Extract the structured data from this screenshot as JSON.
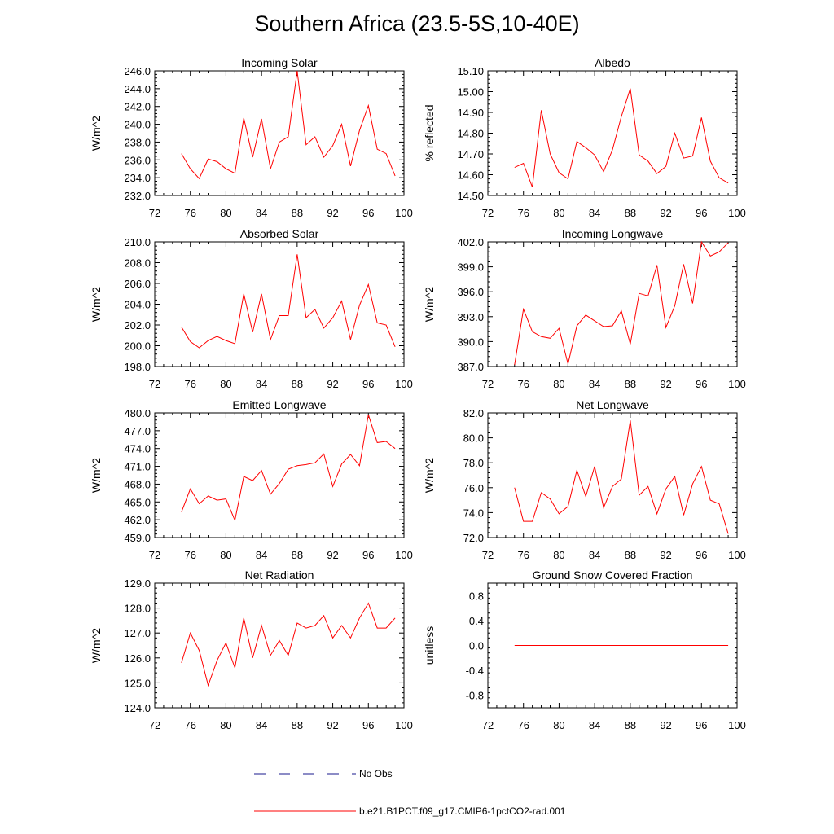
{
  "page_title": "Southern Africa (23.5-5S,10-40E)",
  "colors": {
    "model_line": "#ff0000",
    "obs_line": "#1a1a8c",
    "axis": "#000000"
  },
  "legend": {
    "obs_label": "No Obs",
    "model_label": "b.e21.B1PCT.f09_g17.CMIP6-1pctCO2-rad.001"
  },
  "chart_data": [
    {
      "type": "line",
      "title": "Incoming Solar",
      "ylabel": "W/m^2",
      "xlim": [
        72,
        100
      ],
      "ylim": [
        232,
        246
      ],
      "xticks": [
        "72",
        "76",
        "80",
        "84",
        "88",
        "92",
        "96",
        "100"
      ],
      "yticks": [
        "232.0",
        "234.0",
        "236.0",
        "238.0",
        "240.0",
        "242.0",
        "244.0",
        "246.0"
      ],
      "x": [
        75,
        76,
        77,
        78,
        79,
        80,
        81,
        82,
        83,
        84,
        85,
        86,
        87,
        88,
        89,
        90,
        91,
        92,
        93,
        94,
        95,
        96,
        97,
        98,
        99
      ],
      "series": [
        {
          "values": [
            236.7,
            235.0,
            233.9,
            236.1,
            235.8,
            235.0,
            234.5,
            240.7,
            236.3,
            240.6,
            235.0,
            238.0,
            238.6,
            246.0,
            237.7,
            238.6,
            236.3,
            237.6,
            240.0,
            235.3,
            239.3,
            242.1,
            237.2,
            236.7,
            234.2
          ]
        }
      ]
    },
    {
      "type": "line",
      "title": "Albedo",
      "ylabel": "% reflected",
      "xlim": [
        72,
        100
      ],
      "ylim": [
        14.5,
        15.1
      ],
      "xticks": [
        "72",
        "76",
        "80",
        "84",
        "88",
        "92",
        "96",
        "100"
      ],
      "yticks": [
        "14.50",
        "14.60",
        "14.70",
        "14.80",
        "14.90",
        "15.00",
        "15.10"
      ],
      "x": [
        75,
        76,
        77,
        78,
        79,
        80,
        81,
        82,
        83,
        84,
        85,
        86,
        87,
        88,
        89,
        90,
        91,
        92,
        93,
        94,
        95,
        96,
        97,
        98,
        99
      ],
      "series": [
        {
          "values": [
            14.635,
            14.655,
            14.54,
            14.91,
            14.7,
            14.61,
            14.58,
            14.76,
            14.73,
            14.695,
            14.615,
            14.72,
            14.88,
            15.015,
            14.695,
            14.665,
            14.605,
            14.64,
            14.8,
            14.68,
            14.69,
            14.875,
            14.665,
            14.585,
            14.56
          ]
        }
      ]
    },
    {
      "type": "line",
      "title": "Absorbed Solar",
      "ylabel": "W/m^2",
      "xlim": [
        72,
        100
      ],
      "ylim": [
        198,
        210
      ],
      "xticks": [
        "72",
        "76",
        "80",
        "84",
        "88",
        "92",
        "96",
        "100"
      ],
      "yticks": [
        "198.0",
        "200.0",
        "202.0",
        "204.0",
        "206.0",
        "208.0",
        "210.0"
      ],
      "x": [
        75,
        76,
        77,
        78,
        79,
        80,
        81,
        82,
        83,
        84,
        85,
        86,
        87,
        88,
        89,
        90,
        91,
        92,
        93,
        94,
        95,
        96,
        97,
        98,
        99
      ],
      "series": [
        {
          "values": [
            201.8,
            200.4,
            199.8,
            200.5,
            200.9,
            200.5,
            200.2,
            205.0,
            201.3,
            205.0,
            200.6,
            202.9,
            202.9,
            208.8,
            202.7,
            203.5,
            201.7,
            202.7,
            204.3,
            200.6,
            203.9,
            205.9,
            202.2,
            202.0,
            199.9
          ]
        }
      ]
    },
    {
      "type": "line",
      "title": "Incoming Longwave",
      "ylabel": "W/m^2",
      "xlim": [
        72,
        100
      ],
      "ylim": [
        387,
        402
      ],
      "xticks": [
        "72",
        "76",
        "80",
        "84",
        "88",
        "92",
        "96",
        "100"
      ],
      "yticks": [
        "387.0",
        "390.0",
        "393.0",
        "396.0",
        "399.0",
        "402.0"
      ],
      "x": [
        75,
        76,
        77,
        78,
        79,
        80,
        81,
        82,
        83,
        84,
        85,
        86,
        87,
        88,
        89,
        90,
        91,
        92,
        93,
        94,
        95,
        96,
        97,
        98,
        99
      ],
      "series": [
        {
          "values": [
            387.2,
            393.9,
            391.2,
            390.6,
            390.4,
            391.6,
            387.3,
            391.9,
            393.2,
            392.5,
            391.8,
            391.9,
            393.7,
            389.7,
            395.8,
            395.5,
            399.2,
            391.7,
            394.3,
            399.3,
            394.6,
            402.0,
            400.3,
            400.8,
            401.9
          ]
        }
      ]
    },
    {
      "type": "line",
      "title": "Emitted Longwave",
      "ylabel": "W/m^2",
      "xlim": [
        72,
        100
      ],
      "ylim": [
        459,
        480
      ],
      "xticks": [
        "72",
        "76",
        "80",
        "84",
        "88",
        "92",
        "96",
        "100"
      ],
      "yticks": [
        "459.0",
        "462.0",
        "465.0",
        "468.0",
        "471.0",
        "474.0",
        "477.0",
        "480.0"
      ],
      "x": [
        75,
        76,
        77,
        78,
        79,
        80,
        81,
        82,
        83,
        84,
        85,
        86,
        87,
        88,
        89,
        90,
        91,
        92,
        93,
        94,
        95,
        96,
        97,
        98,
        99
      ],
      "series": [
        {
          "values": [
            463.3,
            467.2,
            464.7,
            466.0,
            465.3,
            465.5,
            461.9,
            469.3,
            468.6,
            470.3,
            466.3,
            468.1,
            470.5,
            471.1,
            471.3,
            471.6,
            473.1,
            467.6,
            471.4,
            473.0,
            471.1,
            479.7,
            475.0,
            475.2,
            474.0
          ]
        }
      ]
    },
    {
      "type": "line",
      "title": "Net Longwave",
      "ylabel": "W/m^2",
      "xlim": [
        72,
        100
      ],
      "ylim": [
        72,
        82
      ],
      "xticks": [
        "72",
        "76",
        "80",
        "84",
        "88",
        "92",
        "96",
        "100"
      ],
      "yticks": [
        "72.0",
        "74.0",
        "76.0",
        "78.0",
        "80.0",
        "82.0"
      ],
      "x": [
        75,
        76,
        77,
        78,
        79,
        80,
        81,
        82,
        83,
        84,
        85,
        86,
        87,
        88,
        89,
        90,
        91,
        92,
        93,
        94,
        95,
        96,
        97,
        98,
        99
      ],
      "series": [
        {
          "values": [
            76.0,
            73.3,
            73.3,
            75.6,
            75.1,
            73.9,
            74.5,
            77.4,
            75.3,
            77.7,
            74.4,
            76.1,
            76.7,
            81.4,
            75.4,
            76.1,
            73.9,
            75.9,
            76.9,
            73.8,
            76.3,
            77.7,
            75.0,
            74.7,
            72.3
          ]
        }
      ]
    },
    {
      "type": "line",
      "title": "Net Radiation",
      "ylabel": "W/m^2",
      "xlim": [
        72,
        100
      ],
      "ylim": [
        124,
        129
      ],
      "xticks": [
        "72",
        "76",
        "80",
        "84",
        "88",
        "92",
        "96",
        "100"
      ],
      "yticks": [
        "124.0",
        "125.0",
        "126.0",
        "127.0",
        "128.0",
        "129.0"
      ],
      "x": [
        75,
        76,
        77,
        78,
        79,
        80,
        81,
        82,
        83,
        84,
        85,
        86,
        87,
        88,
        89,
        90,
        91,
        92,
        93,
        94,
        95,
        96,
        97,
        98,
        99
      ],
      "series": [
        {
          "values": [
            125.8,
            127.0,
            126.3,
            124.9,
            125.9,
            126.6,
            125.6,
            127.6,
            126.0,
            127.3,
            126.1,
            126.7,
            126.1,
            127.4,
            127.2,
            127.3,
            127.7,
            126.8,
            127.3,
            126.8,
            127.6,
            128.2,
            127.2,
            127.2,
            127.6
          ]
        }
      ]
    },
    {
      "type": "line",
      "title": "Ground Snow Covered Fraction",
      "ylabel": "unitless",
      "xlim": [
        72,
        100
      ],
      "ylim": [
        -1.0,
        1.0
      ],
      "xticks": [
        "72",
        "76",
        "80",
        "84",
        "88",
        "92",
        "96",
        "100"
      ],
      "yticks": [
        "-0.8",
        "-0.4",
        "0.0",
        "0.4",
        "0.8"
      ],
      "ytick_values": [
        -0.8,
        -0.4,
        0.0,
        0.4,
        0.8
      ],
      "x": [
        75,
        76,
        77,
        78,
        79,
        80,
        81,
        82,
        83,
        84,
        85,
        86,
        87,
        88,
        89,
        90,
        91,
        92,
        93,
        94,
        95,
        96,
        97,
        98,
        99
      ],
      "series": [
        {
          "values": [
            0,
            0,
            0,
            0,
            0,
            0,
            0,
            0,
            0,
            0,
            0,
            0,
            0,
            0,
            0,
            0,
            0,
            0,
            0,
            0,
            0,
            0,
            0,
            0,
            0
          ]
        }
      ]
    }
  ]
}
